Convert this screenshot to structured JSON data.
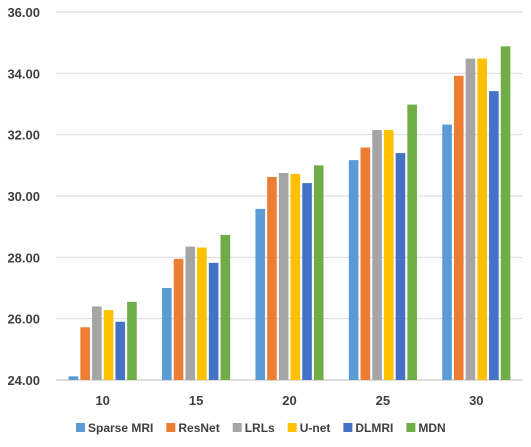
{
  "chart_data": {
    "type": "bar",
    "categories": [
      "10",
      "15",
      "20",
      "25",
      "30"
    ],
    "yticks": [
      "24.00",
      "26.00",
      "28.00",
      "30.00",
      "32.00",
      "34.00",
      "36.00"
    ],
    "ylim": [
      24,
      36
    ],
    "grid": true,
    "legend_position": "bottom",
    "series": [
      {
        "name": "Sparse MRI",
        "color": "#5B9BD5",
        "values": [
          24.12,
          27.0,
          29.58,
          31.17,
          32.33
        ]
      },
      {
        "name": "ResNet",
        "color": "#ED7D31",
        "values": [
          25.72,
          27.95,
          30.62,
          31.58,
          33.92
        ]
      },
      {
        "name": "LRLs",
        "color": "#A5A5A5",
        "values": [
          26.4,
          28.35,
          30.75,
          32.15,
          34.48
        ]
      },
      {
        "name": "U-net",
        "color": "#FFC000",
        "values": [
          26.28,
          28.32,
          30.72,
          32.15,
          34.48
        ]
      },
      {
        "name": "DLMRI",
        "color": "#4472C4",
        "values": [
          25.9,
          27.82,
          30.42,
          31.4,
          33.42
        ]
      },
      {
        "name": "MDN",
        "color": "#70AD47",
        "values": [
          26.55,
          28.73,
          31.0,
          32.98,
          34.88
        ]
      }
    ]
  }
}
